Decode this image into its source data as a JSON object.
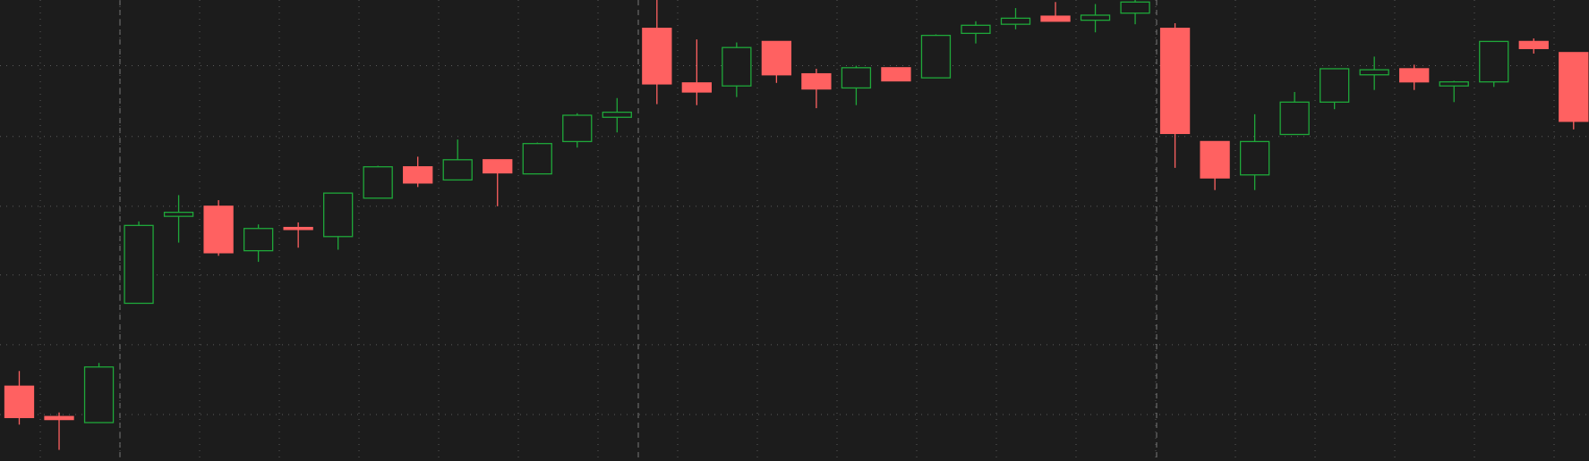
{
  "chart_data": {
    "type": "candlestick",
    "categories": [
      null,
      null,
      null,
      null,
      null,
      null,
      null,
      null,
      null,
      null,
      null,
      null,
      null,
      null,
      null,
      null,
      null,
      null,
      null,
      null,
      null,
      null,
      null,
      null,
      null,
      null,
      null,
      null,
      null,
      null,
      null,
      null,
      null,
      null,
      null,
      null,
      null,
      null,
      null,
      null
    ],
    "open": [
      28,
      -2,
      -8,
      110,
      196,
      206,
      162,
      185,
      176,
      214,
      245,
      232,
      252,
      238,
      270,
      294,
      382,
      328,
      325,
      369,
      337,
      323,
      343,
      333,
      377,
      386,
      394,
      390,
      397,
      382,
      270,
      237,
      277,
      309,
      336,
      342,
      325,
      329,
      369,
      358
    ],
    "high": [
      43,
      2,
      51,
      191,
      217,
      212,
      188,
      190,
      219,
      246,
      255,
      272,
      252,
      269,
      298,
      313,
      410,
      371,
      368,
      369,
      342,
      345,
      343,
      376,
      389,
      402,
      408,
      406,
      410,
      387,
      270,
      297,
      319,
      342,
      354,
      346,
      330,
      369,
      372,
      358
    ],
    "low": [
      -10,
      -35,
      -8,
      110,
      170,
      157,
      151,
      165,
      163,
      214,
      225,
      232,
      206,
      238,
      264,
      279,
      307,
      306,
      314,
      328,
      303,
      306,
      330,
      333,
      367,
      381,
      389,
      378,
      386,
      244,
      222,
      222,
      277,
      302,
      321,
      321,
      309,
      324,
      357,
      282
    ],
    "close": [
      -3,
      -5,
      47,
      187,
      200,
      160,
      184,
      183,
      219,
      245,
      229,
      252,
      239,
      268,
      296,
      299,
      327,
      319,
      363,
      336,
      322,
      343,
      330,
      375,
      385,
      392,
      389,
      395,
      408,
      278,
      234,
      270,
      309,
      342,
      341,
      329,
      329,
      369,
      362,
      290
    ],
    "up_color": "#1fa83a",
    "down_color": "#ff6161",
    "ylim": [
      -46,
      410
    ],
    "yticks": [
      0,
      69,
      138,
      206,
      275,
      345
    ],
    "grid": true
  }
}
